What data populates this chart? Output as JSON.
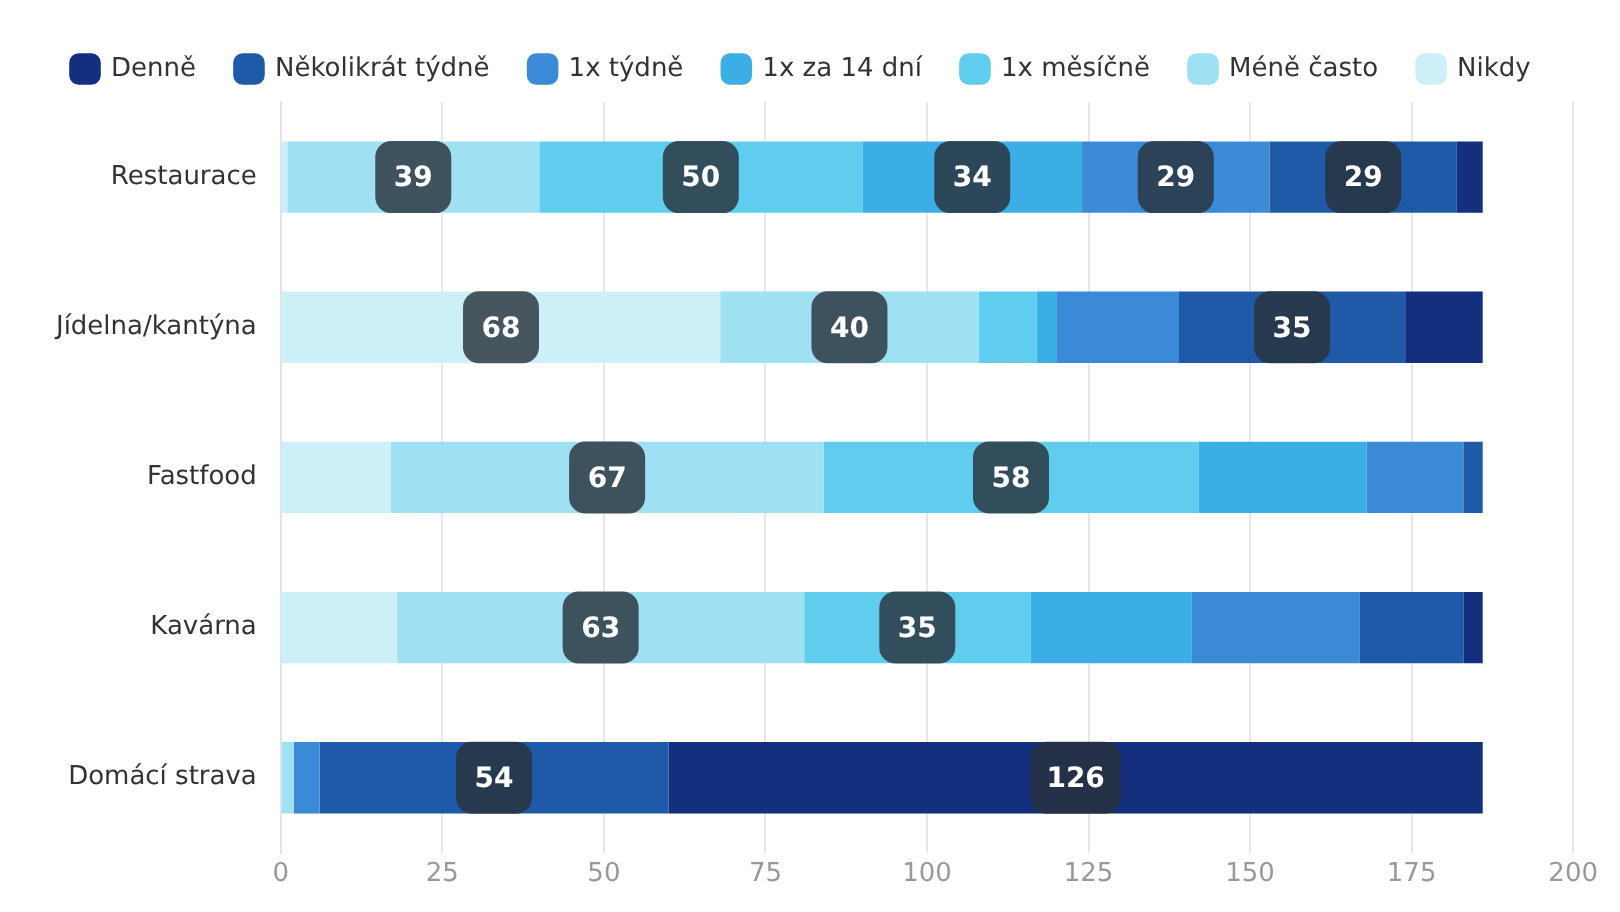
{
  "chart_data": {
    "type": "bar",
    "orientation": "horizontal",
    "stacked": true,
    "categories": [
      "Restaurace",
      "Jídelna/kantýna",
      "Fastfood",
      "Kavárna",
      "Domácí strava"
    ],
    "series": [
      {
        "name": "Nikdy",
        "color": "#cdf0f8",
        "values": [
          1,
          68,
          17,
          18,
          0
        ],
        "value_labels": [
          null,
          "68",
          null,
          null,
          null
        ]
      },
      {
        "name": "Méně často",
        "color": "#9fe0f3",
        "values": [
          39,
          40,
          67,
          63,
          2
        ],
        "value_labels": [
          "39",
          "40",
          "67",
          "63",
          null
        ]
      },
      {
        "name": "1x měsíčně",
        "color": "#61cdee",
        "values": [
          50,
          9,
          58,
          35,
          0
        ],
        "value_labels": [
          "50",
          null,
          "58",
          "35",
          null
        ]
      },
      {
        "name": "1x za 14 dní",
        "color": "#3baee5",
        "values": [
          34,
          3,
          26,
          25,
          0
        ],
        "value_labels": [
          "34",
          null,
          null,
          null,
          null
        ]
      },
      {
        "name": "1x týdně",
        "color": "#3a8ad6",
        "values": [
          29,
          19,
          15,
          26,
          4
        ],
        "value_labels": [
          "29",
          null,
          null,
          null,
          null
        ]
      },
      {
        "name": "Několikrát týdně",
        "color": "#1f5aa8",
        "values": [
          29,
          35,
          3,
          16,
          54
        ],
        "value_labels": [
          "29",
          "35",
          null,
          null,
          "54"
        ]
      },
      {
        "name": "Denně",
        "color": "#132f7e",
        "values": [
          4,
          12,
          0,
          3,
          126
        ],
        "value_labels": [
          null,
          null,
          null,
          null,
          "126"
        ]
      }
    ],
    "xlim": [
      0,
      200
    ],
    "xticks": [
      0,
      25,
      50,
      75,
      100,
      125,
      150,
      175,
      200
    ],
    "grid": "x",
    "legend": "top"
  }
}
